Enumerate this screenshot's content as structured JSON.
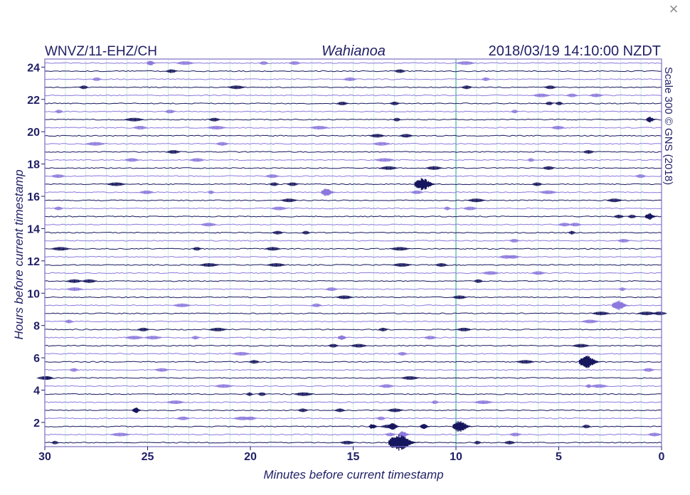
{
  "close_label": "×",
  "chart_data": {
    "type": "helicorder",
    "station": "WNVZ/11-EHZ/CH",
    "site": "Wahianoa",
    "timestamp": "2018/03/19 14:10:00 NZDT",
    "credit": "Scale 300 © GNS (2018)",
    "xlabel": "Minutes before current timestamp",
    "ylabel": "Hours before current timestamp",
    "xlim": [
      30,
      0
    ],
    "ylim": [
      0.5,
      24.5
    ],
    "x_ticks": [
      "30",
      "25",
      "20",
      "15",
      "10",
      "5",
      "0"
    ],
    "y_ticks": [
      "24",
      "22",
      "20",
      "18",
      "16",
      "14",
      "12",
      "10",
      "8",
      "6",
      "4",
      "2"
    ],
    "trace_count": 48,
    "trace_colors": [
      "#8c78dc",
      "#16165e"
    ],
    "grid": true,
    "colors": {
      "frame": "#7a6fc0",
      "grid": "#7fcbb8",
      "marker": "#5fbfae",
      "text": "#1f1f66"
    },
    "marker_minutes": 10,
    "events": [
      {
        "trace": 16,
        "minutes": 11.5,
        "amp": 9
      },
      {
        "trace": 17,
        "minutes": 16.2,
        "amp": 6
      },
      {
        "trace": 31,
        "minutes": 2.0,
        "amp": 7
      },
      {
        "trace": 35,
        "minutes": 15.5,
        "amp": 4
      },
      {
        "trace": 38,
        "minutes": 3.5,
        "amp": 9
      },
      {
        "trace": 41,
        "minutes": 3.5,
        "amp": 3
      },
      {
        "trace": 44,
        "minutes": 25.5,
        "amp": 4
      },
      {
        "trace": 47,
        "minutes": 12.5,
        "amp": 5
      },
      {
        "trace": 48,
        "minutes": 12.6,
        "amp": 12
      },
      {
        "trace": 46,
        "minutes": 9.7,
        "amp": 8
      },
      {
        "trace": 46,
        "minutes": 13.0,
        "amp": 5
      },
      {
        "trace": 46,
        "minutes": 11.5,
        "amp": 4
      },
      {
        "trace": 46,
        "minutes": 14.0,
        "amp": 4
      },
      {
        "trace": 20,
        "minutes": 0.5,
        "amp": 5
      },
      {
        "trace": 1,
        "minutes": 24.8,
        "amp": 4
      },
      {
        "trace": 8,
        "minutes": 0.5,
        "amp": 4
      }
    ]
  }
}
